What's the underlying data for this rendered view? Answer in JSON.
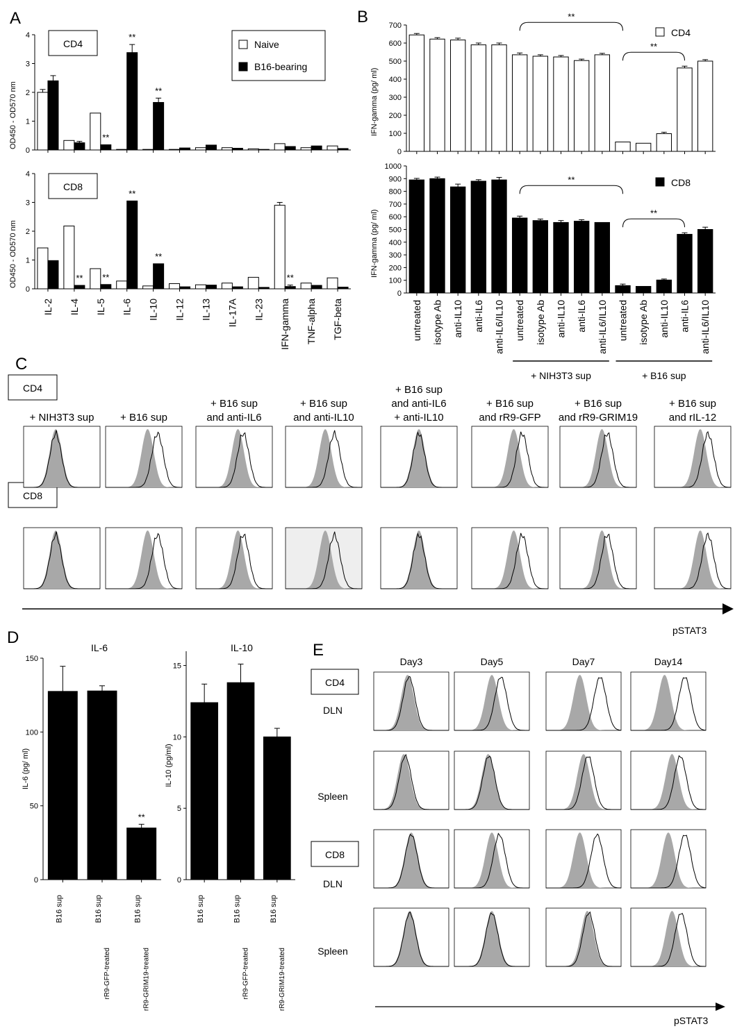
{
  "panels": {
    "A": {
      "letter": "A",
      "legend": [
        "Naive",
        "B16-bearing"
      ],
      "ylabel": "OD450  -  OD570  nm",
      "sig": "**",
      "categories": [
        "IL-2",
        "IL-4",
        "IL-5",
        "IL-6",
        "IL-10",
        "IL-12",
        "IL-13",
        "IL-17A",
        "IL-23",
        "IFN-gamma",
        "TNF-alpha",
        "TGF-beta"
      ]
    },
    "B": {
      "letter": "B",
      "ylabel": "IFN-gamma  (pg/ ml)",
      "sig": "**",
      "categories": [
        "untreated",
        "isotype  Ab",
        "anti-IL10",
        "anti-IL6",
        "anti-IL6/IL10",
        "untreated",
        "isotype  Ab",
        "anti-IL10",
        "anti-IL6",
        "anti-IL6/IL10",
        "untreated",
        "isotype  Ab",
        "anti-IL10",
        "anti-IL6",
        "anti-IL6/IL10"
      ],
      "groups": [
        "+ NIH3T3  sup",
        "+ B16  sup"
      ]
    },
    "C": {
      "letter": "C",
      "row_labels": [
        "CD4",
        "CD8"
      ],
      "conditions": [
        "+ NIH3T3 sup",
        "+ B16 sup",
        "+ B16 sup\nand  anti-IL6",
        "+ B16 sup\nand  anti-IL10",
        "+ B16 sup\nand anti-IL6\n+ anti-IL10",
        "+ B16 sup\nand  rR9-GFP",
        "+ B16 sup\nand  rR9-GRIM19",
        "+ B16 sup\nand  rIL-12"
      ],
      "axis_label": "pSTAT3"
    },
    "D": {
      "letter": "D",
      "sig": "**",
      "categories": [
        "B16  sup",
        "B16  sup",
        "B16  sup"
      ],
      "treatments": [
        "",
        "rR9-GFP-treated",
        "rR9-GRIM19-treated"
      ]
    },
    "E": {
      "letter": "E",
      "days": [
        "Day3",
        "Day5",
        "Day7",
        "Day14"
      ],
      "rows": [
        "DLN",
        "Spleen",
        "DLN",
        "Spleen"
      ],
      "cell_labels": [
        "CD4",
        "CD8"
      ],
      "axis_label": "pSTAT3"
    }
  },
  "chart_data": [
    {
      "id": "A-CD4",
      "type": "bar",
      "title": "CD4",
      "categories": [
        "IL-2",
        "IL-4",
        "IL-5",
        "IL-6",
        "IL-10",
        "IL-12",
        "IL-13",
        "IL-17A",
        "IL-23",
        "IFN-gamma",
        "TNF-alpha",
        "TGF-beta"
      ],
      "ylabel": "OD450  -  OD570  nm",
      "ylim": [
        0,
        4
      ],
      "yticks": [
        0,
        1,
        2,
        3,
        4
      ],
      "series": [
        {
          "name": "Naive",
          "values": [
            2.0,
            0.33,
            1.28,
            0.02,
            0.02,
            0.02,
            0.08,
            0.08,
            0.04,
            0.22,
            0.08,
            0.14
          ],
          "err": [
            0.1,
            0,
            0,
            0,
            0,
            0,
            0,
            0,
            0,
            0,
            0,
            0
          ]
        },
        {
          "name": "B16-bearing",
          "values": [
            2.4,
            0.25,
            0.18,
            3.38,
            1.65,
            0.07,
            0.17,
            0.06,
            0.02,
            0.12,
            0.14,
            0.05
          ],
          "err": [
            0.18,
            0.05,
            0,
            0.28,
            0.15,
            0,
            0,
            0,
            0,
            0,
            0,
            0
          ]
        }
      ],
      "sig_marks": [
        [
          2,
          1
        ],
        [
          3,
          1
        ],
        [
          4,
          1
        ]
      ]
    },
    {
      "id": "A-CD8",
      "type": "bar",
      "title": "CD8",
      "categories": [
        "IL-2",
        "IL-4",
        "IL-5",
        "IL-6",
        "IL-10",
        "IL-12",
        "IL-13",
        "IL-17A",
        "IL-23",
        "IFN-gamma",
        "TNF-alpha",
        "TGF-beta"
      ],
      "ylabel": "OD450  -  OD570  nm",
      "ylim": [
        0,
        4
      ],
      "yticks": [
        0,
        1,
        2,
        3,
        4
      ],
      "series": [
        {
          "name": "Naive",
          "values": [
            1.42,
            2.18,
            0.7,
            0.27,
            0.1,
            0.18,
            0.14,
            0.2,
            0.4,
            2.9,
            0.2,
            0.38
          ],
          "err": [
            0,
            0,
            0,
            0,
            0,
            0,
            0,
            0,
            0,
            0.1,
            0,
            0
          ]
        },
        {
          "name": "B16-bearing",
          "values": [
            0.98,
            0.12,
            0.15,
            3.05,
            0.87,
            0.07,
            0.13,
            0.07,
            0.05,
            0.08,
            0.12,
            0.06
          ],
          "err": [
            0,
            0,
            0,
            0,
            0,
            0,
            0,
            0,
            0,
            0.05,
            0,
            0
          ]
        }
      ],
      "sig_marks": [
        [
          1,
          1
        ],
        [
          2,
          1
        ],
        [
          3,
          1
        ],
        [
          4,
          1
        ],
        [
          9,
          1
        ]
      ]
    },
    {
      "id": "B-CD4",
      "type": "bar",
      "legend": "CD4",
      "fill": "#ffffff",
      "ylim": [
        0,
        700
      ],
      "yticks": [
        0,
        100,
        200,
        300,
        400,
        500,
        600,
        700
      ],
      "values": [
        645,
        622,
        617,
        590,
        590,
        535,
        527,
        523,
        503,
        535,
        52,
        45,
        98,
        462,
        500
      ],
      "err": [
        8,
        8,
        10,
        10,
        10,
        10,
        8,
        8,
        8,
        8,
        0,
        0,
        8,
        10,
        8
      ]
    },
    {
      "id": "B-CD8",
      "type": "bar",
      "legend": "CD8",
      "fill": "#000000",
      "ylim": [
        0,
        1000
      ],
      "yticks": [
        0,
        100,
        200,
        300,
        400,
        500,
        600,
        700,
        800,
        900,
        1000
      ],
      "values": [
        890,
        900,
        835,
        880,
        890,
        590,
        570,
        555,
        565,
        555,
        58,
        52,
        102,
        462,
        500
      ],
      "err": [
        12,
        12,
        22,
        12,
        20,
        15,
        12,
        15,
        12,
        0,
        12,
        0,
        8,
        12,
        18
      ]
    },
    {
      "id": "D-IL6",
      "type": "bar",
      "title": "IL-6",
      "ylabel": "IL-6 (pg/ ml)",
      "ylim": [
        0,
        150
      ],
      "yticks": [
        0,
        50,
        100,
        150
      ],
      "values": [
        127.5,
        127.8,
        35
      ],
      "err": [
        17,
        3.5,
        2.5
      ],
      "sig_marks": [
        2
      ]
    },
    {
      "id": "D-IL10",
      "type": "bar",
      "title": "IL-10",
      "ylabel": "IL-10 (pg/ml)",
      "ylim": [
        0,
        16
      ],
      "yticks": [
        0,
        5,
        10,
        15
      ],
      "values": [
        12.4,
        13.8,
        10.0
      ],
      "err": [
        1.3,
        1.3,
        0.6
      ]
    }
  ]
}
